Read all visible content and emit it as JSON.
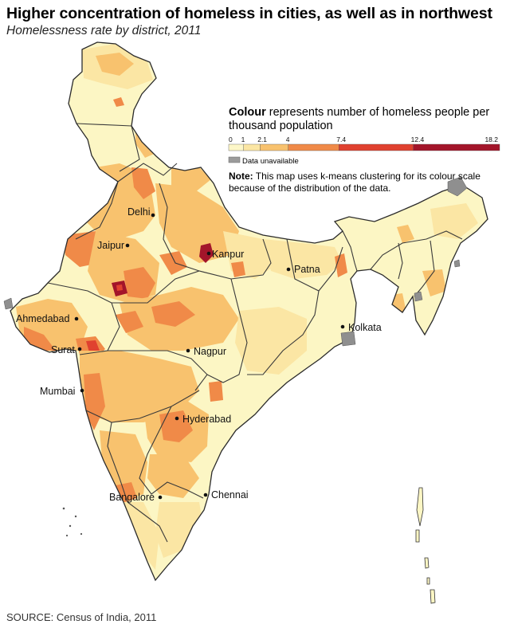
{
  "title": "Higher concentration of homeless in cities, as well as in northwest",
  "subtitle": "Homelessness rate by district, 2011",
  "legend": {
    "title_bold": "Colour",
    "title_rest": " represents number of homeless people per thousand population",
    "breaks": [
      "0",
      "1",
      "2.1",
      "4",
      "7.4",
      "12.4",
      "18.2"
    ],
    "colors": [
      "#fdf7c8",
      "#fbe6a4",
      "#f8c26e",
      "#f08a48",
      "#e0412f",
      "#a3152a"
    ],
    "na_color": "#9b9b9b",
    "na_label": "Data unavailable"
  },
  "note": {
    "bold": "Note:",
    "text": " This map uses k-means clustering for its colour scale because of the distribution of the data."
  },
  "cities": [
    {
      "name": "Delhi"
    },
    {
      "name": "Jaipur"
    },
    {
      "name": "Kanpur"
    },
    {
      "name": "Patna"
    },
    {
      "name": "Ahmedabad"
    },
    {
      "name": "Kolkata"
    },
    {
      "name": "Surat"
    },
    {
      "name": "Nagpur"
    },
    {
      "name": "Mumbai"
    },
    {
      "name": "Hyderabad"
    },
    {
      "name": "Bangalore"
    },
    {
      "name": "Chennai"
    }
  ],
  "source": "SOURCE: Census of India, 2011"
}
